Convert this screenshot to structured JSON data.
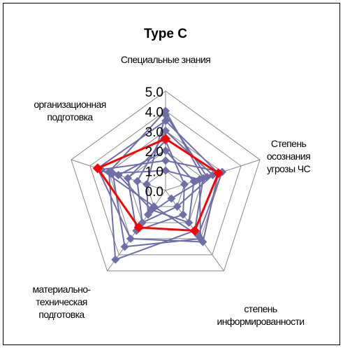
{
  "chart_data": {
    "type": "radar",
    "title": "Type C",
    "categories": [
      "Специальные знания",
      "Степень\nосознания\nугрозы ЧС",
      "степень\nинформированности",
      "материально-\nтехническая\nподготовка",
      "организационная\nподготовка"
    ],
    "ylim": [
      0,
      5
    ],
    "yticks": [
      {
        "value": 0,
        "label": "0.0"
      },
      {
        "value": 1,
        "label": "1.0"
      },
      {
        "value": 2,
        "label": "2.0"
      },
      {
        "value": 3,
        "label": "3.0"
      },
      {
        "value": 4,
        "label": "4.0"
      },
      {
        "value": 5,
        "label": "5.0"
      }
    ],
    "grid": true,
    "series": [
      {
        "color": "#6e6ea8",
        "values": [
          4.0,
          2.0,
          2.5,
          4.3,
          3.0
        ]
      },
      {
        "color": "#6e6ea8",
        "values": [
          3.5,
          2.8,
          3.2,
          3.0,
          3.6
        ]
      },
      {
        "color": "#6e6ea8",
        "values": [
          2.0,
          1.5,
          2.0,
          1.2,
          2.5
        ]
      },
      {
        "color": "#6e6ea8",
        "values": [
          3.0,
          2.5,
          1.0,
          2.0,
          1.5
        ]
      },
      {
        "color": "#6e6ea8",
        "values": [
          1.5,
          3.0,
          2.8,
          1.0,
          3.4
        ]
      },
      {
        "color": "#6e6ea8",
        "values": [
          2.5,
          1.0,
          1.5,
          2.5,
          2.0
        ]
      },
      {
        "color": "#6e6ea8",
        "values": [
          3.8,
          2.2,
          0.5,
          1.5,
          1.0
        ]
      },
      {
        "color": "#6e6ea8",
        "values": [
          1.0,
          1.8,
          3.0,
          3.5,
          2.8
        ]
      },
      {
        "color": "#ff0000",
        "values": [
          2.6,
          2.8,
          2.5,
          2.3,
          3.6
        ]
      }
    ]
  }
}
